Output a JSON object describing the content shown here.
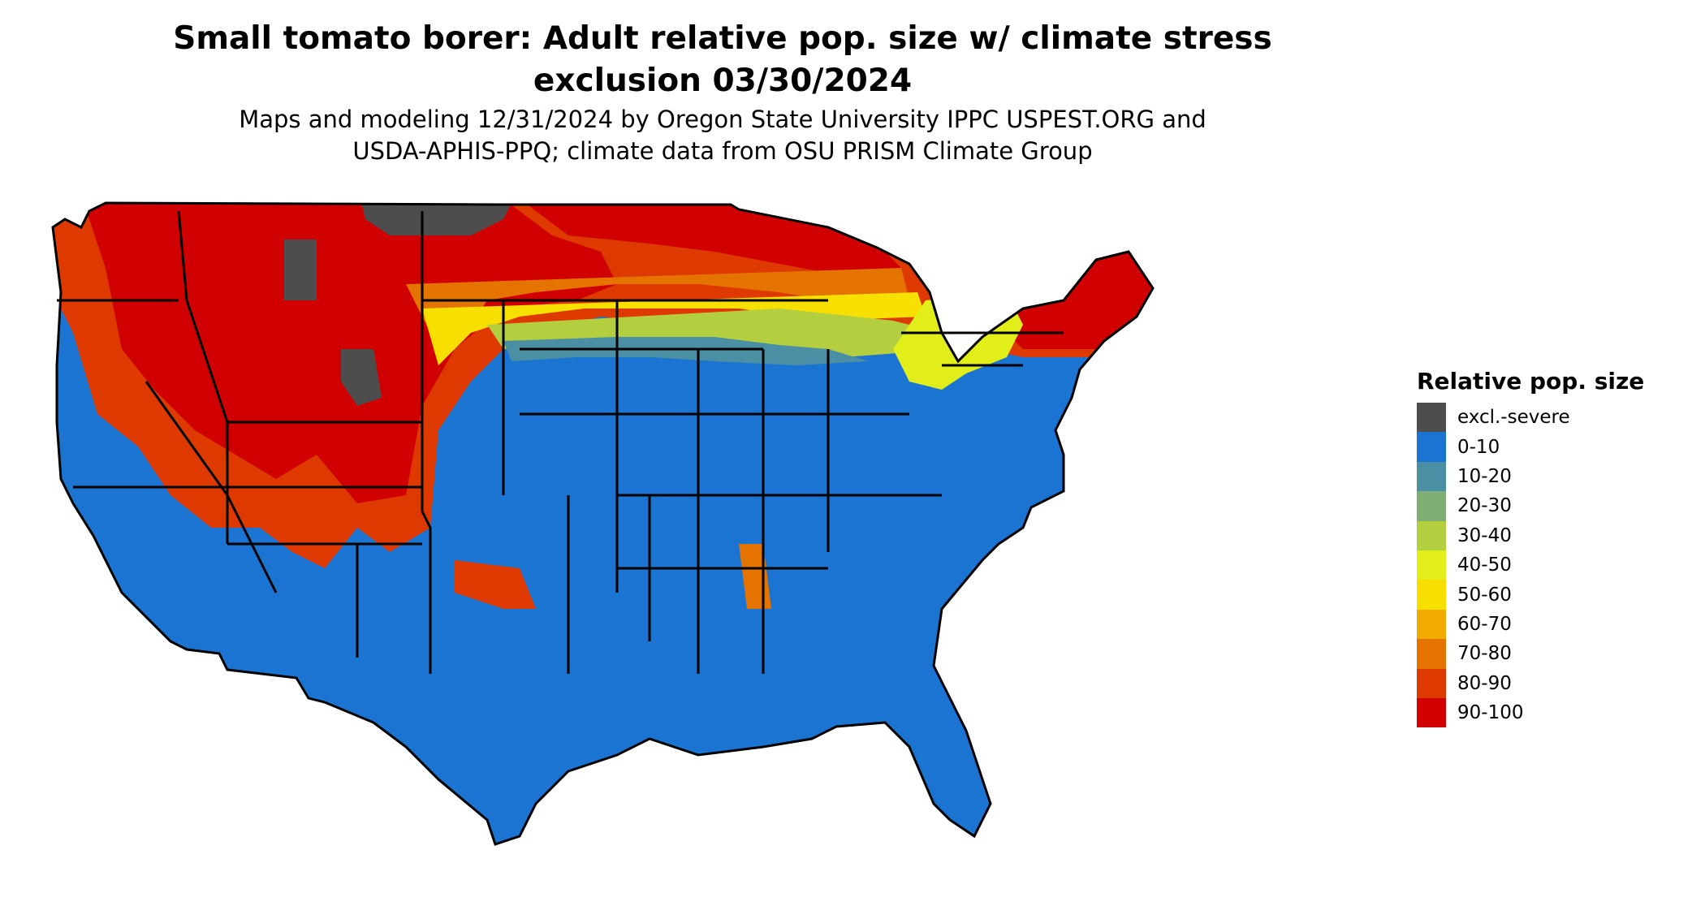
{
  "map": {
    "title_line1": "Small tomato borer: Adult relative pop. size w/ climate stress",
    "title_line2": "exclusion 03/30/2024",
    "subtitle_line1": "Maps and modeling 12/31/2024 by Oregon State University IPPC USPEST.ORG and",
    "subtitle_line2": "USDA-APHIS-PPQ; climate data from OSU PRISM Climate Group"
  },
  "legend": {
    "title": "Relative pop. size",
    "items": [
      {
        "label": "excl.-severe",
        "color": "#4d4d4d"
      },
      {
        "label": "0-10",
        "color": "#1b74d1"
      },
      {
        "label": "10-20",
        "color": "#4a8fa3"
      },
      {
        "label": "20-30",
        "color": "#7fae72"
      },
      {
        "label": "30-40",
        "color": "#b3cf3f"
      },
      {
        "label": "40-50",
        "color": "#e2ee1a"
      },
      {
        "label": "50-60",
        "color": "#f7df00"
      },
      {
        "label": "60-70",
        "color": "#f0aa00"
      },
      {
        "label": "70-80",
        "color": "#e57300"
      },
      {
        "label": "80-90",
        "color": "#de3a00"
      },
      {
        "label": "90-100",
        "color": "#d00000"
      }
    ]
  }
}
